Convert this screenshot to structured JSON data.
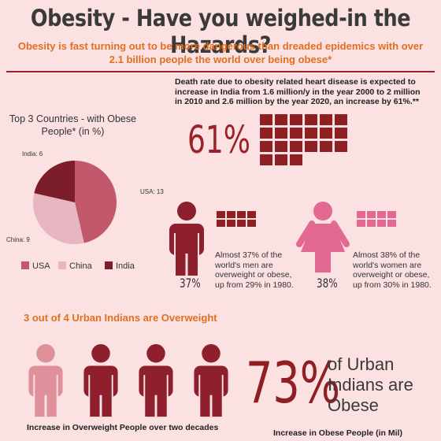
{
  "header": {
    "title": "Obesity - Have you weighed-in the Hazards?",
    "subtitle": "Obesity is fast turning out to be more dangerous than dreaded epidemics with over 2.1 billion people the world over being obese*"
  },
  "chart_data": {
    "type": "pie",
    "title": "Top 3 Countries - with Obese People* (in %)",
    "categories": [
      "USA",
      "China",
      "India"
    ],
    "values": [
      13,
      9,
      6
    ],
    "value_labels": [
      "USA: 13",
      "China: 9",
      "India: 6"
    ],
    "colors": [
      "#c2596b",
      "#e8b6c2",
      "#7b1e2a"
    ]
  },
  "death_rate": {
    "text": "Death rate due to obesity related heart disease is expected to increase in India from 1.6 million/y in the year 2000 to 2 million in 2010 and 2.6 million by the year 2020, an increase by 61%.**",
    "stat": "61%"
  },
  "men": {
    "stat": "37%",
    "text": "Almost 37% of the world's men are overweight or obese, up from 29% in 1980."
  },
  "women": {
    "stat": "38%",
    "text": "Almost 38% of the world's women are overweight or obese, up from 30% in 1980."
  },
  "urban": {
    "heading": "3 out of 4 Urban Indians are Overweight",
    "stat": "73%",
    "text": "of Urban Indians are Obese"
  },
  "captions": {
    "left": "Increase in Overweight People over two decades",
    "right": "Increase in Obese People (in Mil)"
  }
}
